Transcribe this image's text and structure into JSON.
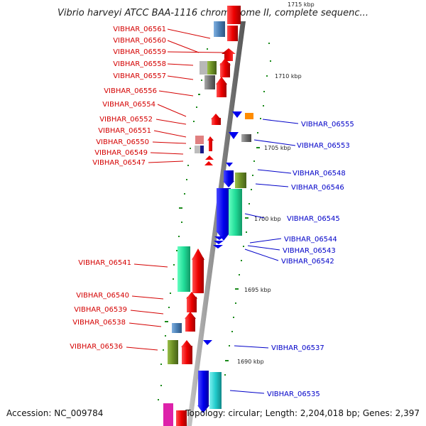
{
  "title": "Vibrio harveyi ATCC BAA-1116 chromosome II, complete sequenc...",
  "footer": {
    "accession": "Accession: NC_009784",
    "topology": "Topology: circular; Length: 2,204,018 bp; Genes: 2,397"
  },
  "scale_labels": [
    "1715 kbp",
    "1710 kbp",
    "1705 kbp",
    "1700 kbp",
    "1695 kbp",
    "1690 kbp"
  ],
  "left_genes": [
    "VIBHAR_06561",
    "VIBHAR_06560",
    "VIBHAR_06559",
    "VIBHAR_06558",
    "VIBHAR_06557",
    "VIBHAR_06556",
    "VIBHAR_06554",
    "VIBHAR_06552",
    "VIBHAR_06551",
    "VIBHAR_06550",
    "VIBHAR_06549",
    "VIBHAR_06547",
    "VIBHAR_06541",
    "VIBHAR_06540",
    "VIBHAR_06539",
    "VIBHAR_06538",
    "VIBHAR_06536"
  ],
  "right_genes": [
    "VIBHAR_06555",
    "VIBHAR_06553",
    "VIBHAR_06548",
    "VIBHAR_06546",
    "VIBHAR_06545",
    "VIBHAR_06544",
    "VIBHAR_06543",
    "VIBHAR_06542",
    "VIBHAR_06537",
    "VIBHAR_06535"
  ],
  "colors": {
    "backbone": "#8c8c8c",
    "left_label": "#d40000",
    "right_label": "#0000c8",
    "tick": "#1a8a1a",
    "red_gene": "#ee0000",
    "blue_gene": "#0000ee",
    "green_gene": "#22dd99",
    "olive_gene": "#6b8e23",
    "steel_gene": "#4a7fb5",
    "gray_gene": "#707070",
    "orange_gene": "#ff8c00",
    "cyan_gene": "#22cccc",
    "magenta_gene": "#dd22aa",
    "pink_gene": "#e08080"
  }
}
